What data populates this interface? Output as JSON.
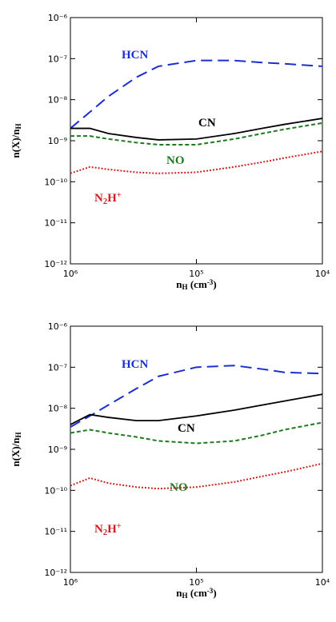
{
  "chart_data": [
    {
      "type": "line",
      "xlog": true,
      "ylog": true,
      "xlabel": [
        [
          "n",
          ""
        ],
        [
          "H",
          "sub"
        ],
        [
          " (cm",
          ""
        ],
        [
          "-3",
          "sup"
        ],
        [
          ")",
          ""
        ]
      ],
      "ylabel": [
        [
          "n(X)/n",
          ""
        ],
        [
          "H",
          "sub"
        ]
      ],
      "x": [
        1000000,
        700000,
        500000,
        300000,
        200000,
        100000,
        50000,
        30000,
        20000,
        10000
      ],
      "xlim": [
        1000000,
        10000
      ],
      "xticks": [
        {
          "value": 1000000,
          "label": "10⁶"
        },
        {
          "value": 100000,
          "label": "10⁵"
        },
        {
          "value": 10000,
          "label": "10⁴"
        }
      ],
      "ylim": [
        1e-12,
        1e-06
      ],
      "yticks": [
        {
          "value": 1e-12,
          "label": "10⁻¹²"
        },
        {
          "value": 1e-11,
          "label": "10⁻¹¹"
        },
        {
          "value": 1e-10,
          "label": "10⁻¹⁰"
        },
        {
          "value": 1e-09,
          "label": "10⁻⁹"
        },
        {
          "value": 1e-08,
          "label": "10⁻⁸"
        },
        {
          "value": 1e-07,
          "label": "10⁻⁷"
        },
        {
          "value": 1e-06,
          "label": "10⁻⁶"
        }
      ],
      "series": [
        {
          "name": [
            [
              "HCN",
              ""
            ]
          ],
          "color": "#1b2fd0",
          "dash": "long",
          "values": [
            2e-09,
            5e-09,
            1.2e-08,
            3.5e-08,
            6.5e-08,
            9e-08,
            9e-08,
            8e-08,
            7.5e-08,
            6.5e-08
          ]
        },
        {
          "name": [
            [
              "CN",
              ""
            ]
          ],
          "color": "#000000",
          "dash": "solid",
          "values": [
            2e-09,
            2e-09,
            1.5e-09,
            1.2e-09,
            1.05e-09,
            1.1e-09,
            1.5e-09,
            2e-09,
            2.5e-09,
            3.5e-09
          ]
        },
        {
          "name": [
            [
              "NO",
              ""
            ]
          ],
          "color": "#1f7a1f",
          "dash": "short",
          "values": [
            1.3e-09,
            1.3e-09,
            1.1e-09,
            9e-10,
            8e-10,
            8e-10,
            1.1e-09,
            1.5e-09,
            1.9e-09,
            2.7e-09
          ]
        },
        {
          "name": [
            [
              "N",
              ""
            ],
            [
              "2",
              "sub"
            ],
            [
              "H",
              ""
            ],
            [
              "+",
              "sup"
            ]
          ],
          "color": "#cc2020",
          "dash": "dot",
          "values": [
            1.6e-10,
            2.3e-10,
            2e-10,
            1.7e-10,
            1.6e-10,
            1.7e-10,
            2.3e-10,
            3e-10,
            3.8e-10,
            5.5e-10
          ]
        }
      ]
    },
    {
      "type": "line",
      "xlog": true,
      "ylog": true,
      "xlabel": [
        [
          "n",
          ""
        ],
        [
          "H",
          "sub"
        ],
        [
          " (cm",
          ""
        ],
        [
          "-3",
          "sup"
        ],
        [
          ")",
          ""
        ]
      ],
      "ylabel": [
        [
          "n(X)/n",
          ""
        ],
        [
          "H",
          "sub"
        ]
      ],
      "x": [
        1000000,
        700000,
        500000,
        300000,
        200000,
        100000,
        50000,
        30000,
        20000,
        10000
      ],
      "xlim": [
        1000000,
        10000
      ],
      "xticks": [
        {
          "value": 1000000,
          "label": "10⁶"
        },
        {
          "value": 100000,
          "label": "10⁵"
        },
        {
          "value": 10000,
          "label": "10⁴"
        }
      ],
      "ylim": [
        1e-12,
        1e-06
      ],
      "yticks": [
        {
          "value": 1e-12,
          "label": "10⁻¹²"
        },
        {
          "value": 1e-11,
          "label": "10⁻¹¹"
        },
        {
          "value": 1e-10,
          "label": "10⁻¹⁰"
        },
        {
          "value": 1e-09,
          "label": "10⁻⁹"
        },
        {
          "value": 1e-08,
          "label": "10⁻⁸"
        },
        {
          "value": 1e-07,
          "label": "10⁻⁷"
        },
        {
          "value": 1e-06,
          "label": "10⁻⁶"
        }
      ],
      "series": [
        {
          "name": [
            [
              "HCN",
              ""
            ]
          ],
          "color": "#1b2fd0",
          "dash": "long",
          "values": [
            3.5e-09,
            6.5e-09,
            1.2e-08,
            3e-08,
            6e-08,
            1e-07,
            1.1e-07,
            9e-08,
            7.5e-08,
            7e-08
          ]
        },
        {
          "name": [
            [
              "CN",
              ""
            ]
          ],
          "color": "#000000",
          "dash": "solid",
          "values": [
            4e-09,
            7e-09,
            6e-09,
            5e-09,
            5e-09,
            6.5e-09,
            9e-09,
            1.2e-08,
            1.5e-08,
            2.2e-08
          ]
        },
        {
          "name": [
            [
              "NO",
              ""
            ]
          ],
          "color": "#1f7a1f",
          "dash": "short",
          "values": [
            2.5e-09,
            3e-09,
            2.5e-09,
            2e-09,
            1.6e-09,
            1.4e-09,
            1.6e-09,
            2.2e-09,
            3e-09,
            4.5e-09
          ]
        },
        {
          "name": [
            [
              "N",
              ""
            ],
            [
              "2",
              "sub"
            ],
            [
              "H",
              ""
            ],
            [
              "+",
              "sup"
            ]
          ],
          "color": "#cc2020",
          "dash": "dot",
          "values": [
            1.3e-10,
            2e-10,
            1.5e-10,
            1.2e-10,
            1.1e-10,
            1.2e-10,
            1.6e-10,
            2.2e-10,
            2.8e-10,
            4.5e-10
          ]
        }
      ]
    }
  ]
}
